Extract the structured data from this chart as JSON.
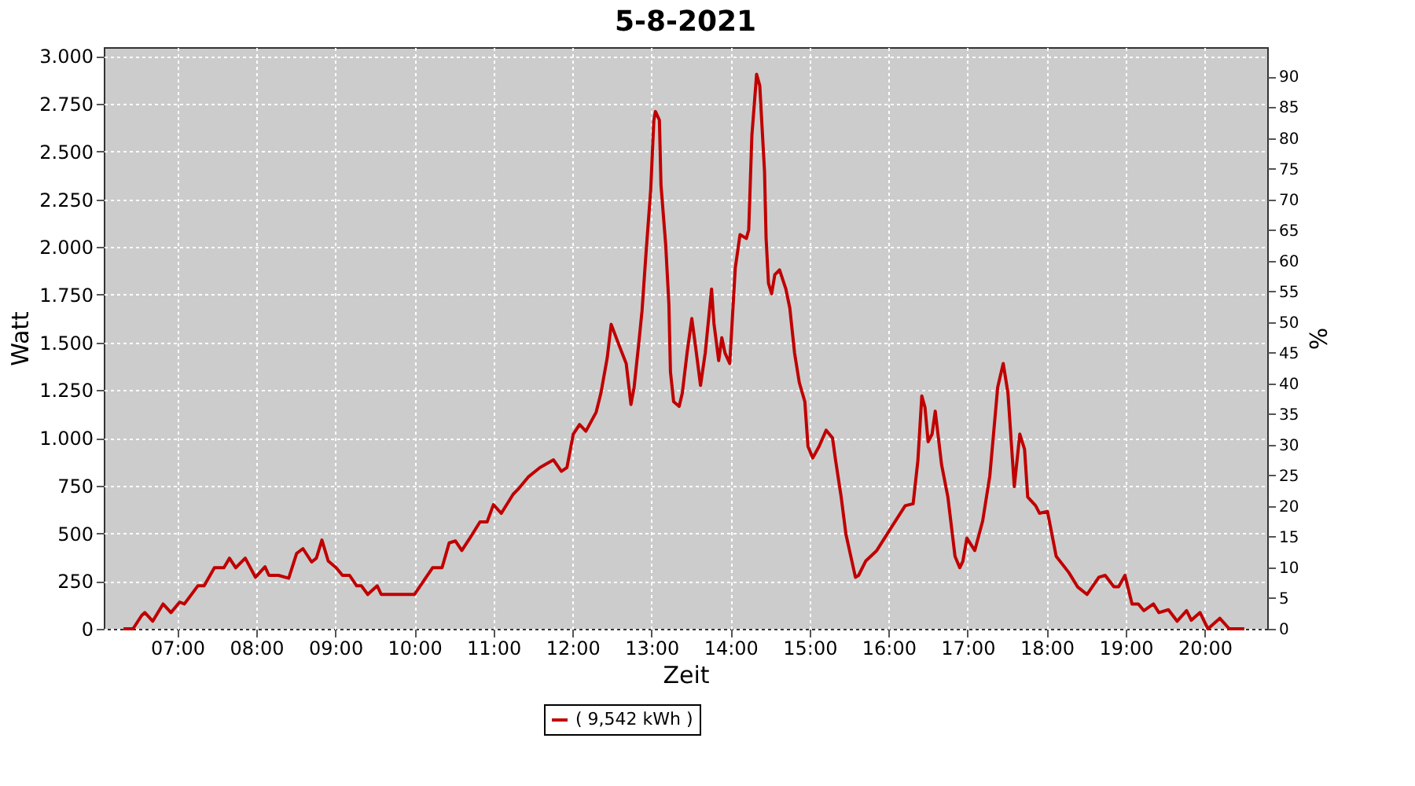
{
  "chart_data": {
    "type": "line",
    "title": "5-8-2021",
    "xlabel": "Zeit",
    "ylabel": "Watt",
    "y2label": "%",
    "xlim": [
      6.07,
      20.79
    ],
    "xticks": [
      {
        "value": 7,
        "label": "07:00"
      },
      {
        "value": 8,
        "label": "08:00"
      },
      {
        "value": 9,
        "label": "09:00"
      },
      {
        "value": 10,
        "label": "10:00"
      },
      {
        "value": 11,
        "label": "11:00"
      },
      {
        "value": 12,
        "label": "12:00"
      },
      {
        "value": 13,
        "label": "13:00"
      },
      {
        "value": 14,
        "label": "14:00"
      },
      {
        "value": 15,
        "label": "15:00"
      },
      {
        "value": 16,
        "label": "16:00"
      },
      {
        "value": 17,
        "label": "17:00"
      },
      {
        "value": 18,
        "label": "18:00"
      },
      {
        "value": 19,
        "label": "19:00"
      },
      {
        "value": 20,
        "label": "20:00"
      }
    ],
    "ylim": [
      0,
      3047
    ],
    "yticks": [
      0,
      250,
      500,
      750,
      {
        "value": 1000,
        "label": "1.000"
      },
      {
        "value": 1250,
        "label": "1.250"
      },
      {
        "value": 1500,
        "label": "1.500"
      },
      {
        "value": 1750,
        "label": "1.750"
      },
      {
        "value": 2000,
        "label": "2.000"
      },
      {
        "value": 2250,
        "label": "2.250"
      },
      {
        "value": 2500,
        "label": "2.500"
      },
      {
        "value": 2750,
        "label": "2.750"
      },
      {
        "value": 3000,
        "label": "3.000"
      }
    ],
    "y2lim": [
      0,
      94.8
    ],
    "y2ticks": [
      0,
      5,
      10,
      15,
      20,
      25,
      30,
      35,
      40,
      45,
      50,
      55,
      60,
      65,
      70,
      75,
      80,
      85,
      90
    ],
    "grid": true,
    "legend": "bottom",
    "marker": "none",
    "line_style": "solid",
    "series": [
      {
        "name": "( 9,542 kWh )",
        "color": "#c00000",
        "x": [
          6.32,
          6.44,
          6.55,
          6.59,
          6.69,
          6.82,
          6.92,
          7.03,
          7.09,
          7.26,
          7.34,
          7.47,
          7.59,
          7.66,
          7.74,
          7.86,
          7.99,
          8.11,
          8.16,
          8.28,
          8.41,
          8.51,
          8.59,
          8.7,
          8.76,
          8.83,
          8.91,
          9.01,
          9.09,
          9.18,
          9.27,
          9.33,
          9.41,
          9.53,
          9.58,
          9.91,
          10.0,
          10.1,
          10.23,
          10.35,
          10.44,
          10.52,
          10.6,
          10.71,
          10.83,
          10.92,
          11.0,
          11.1,
          11.25,
          11.31,
          11.44,
          11.59,
          11.76,
          11.86,
          11.93,
          12.01,
          12.09,
          12.17,
          12.3,
          12.36,
          12.44,
          12.49,
          12.59,
          12.68,
          12.74,
          12.78,
          12.84,
          12.88,
          12.93,
          12.99,
          13.03,
          13.05,
          13.1,
          13.12,
          13.18,
          13.22,
          13.24,
          13.28,
          13.35,
          13.39,
          13.45,
          13.51,
          13.56,
          13.62,
          13.68,
          13.76,
          13.79,
          13.85,
          13.89,
          13.93,
          13.99,
          14.06,
          14.12,
          14.2,
          14.23,
          14.27,
          14.33,
          14.37,
          14.43,
          14.45,
          14.48,
          14.52,
          14.56,
          14.62,
          14.7,
          14.75,
          14.81,
          14.87,
          14.94,
          14.98,
          15.04,
          15.12,
          15.21,
          15.29,
          15.33,
          15.4,
          15.46,
          15.58,
          15.62,
          15.71,
          15.85,
          16.04,
          16.21,
          16.31,
          16.37,
          16.42,
          16.46,
          16.5,
          16.55,
          16.59,
          16.67,
          16.75,
          16.84,
          16.9,
          16.94,
          16.99,
          17.09,
          17.19,
          17.28,
          17.38,
          17.45,
          17.51,
          17.59,
          17.66,
          17.72,
          17.76,
          17.86,
          17.91,
          18.01,
          18.12,
          18.28,
          18.39,
          18.51,
          18.66,
          18.74,
          18.85,
          18.91,
          18.99,
          19.08,
          19.16,
          19.23,
          19.35,
          19.42,
          19.54,
          19.65,
          19.77,
          19.83,
          19.94,
          20.04,
          20.19,
          20.31,
          20.5
        ],
        "values": [
          0,
          0,
          70,
          85,
          40,
          130,
          85,
          140,
          130,
          225,
          225,
          320,
          320,
          370,
          320,
          370,
          270,
          325,
          280,
          280,
          265,
          395,
          420,
          350,
          370,
          465,
          355,
          320,
          280,
          280,
          225,
          225,
          180,
          225,
          180,
          180,
          180,
          240,
          320,
          320,
          450,
          460,
          410,
          480,
          560,
          560,
          650,
          605,
          705,
          730,
          795,
          845,
          885,
          825,
          845,
          1020,
          1070,
          1035,
          1135,
          1235,
          1420,
          1595,
          1485,
          1390,
          1175,
          1265,
          1500,
          1665,
          1965,
          2300,
          2665,
          2710,
          2665,
          2325,
          2010,
          1700,
          1345,
          1190,
          1165,
          1235,
          1445,
          1625,
          1470,
          1275,
          1445,
          1780,
          1600,
          1405,
          1525,
          1445,
          1390,
          1890,
          2065,
          2045,
          2090,
          2585,
          2905,
          2845,
          2395,
          2045,
          1810,
          1755,
          1855,
          1880,
          1780,
          1680,
          1445,
          1290,
          1190,
          955,
          895,
          955,
          1040,
          1000,
          880,
          690,
          495,
          270,
          280,
          355,
          410,
          535,
          645,
          655,
          880,
          1220,
          1160,
          980,
          1020,
          1140,
          860,
          690,
          380,
          320,
          355,
          475,
          410,
          565,
          800,
          1265,
          1390,
          1235,
          745,
          1020,
          940,
          690,
          645,
          605,
          615,
          380,
          295,
          220,
          180,
          270,
          280,
          220,
          220,
          280,
          130,
          130,
          95,
          130,
          85,
          100,
          40,
          95,
          45,
          85,
          0,
          55,
          0,
          0
        ]
      }
    ]
  }
}
